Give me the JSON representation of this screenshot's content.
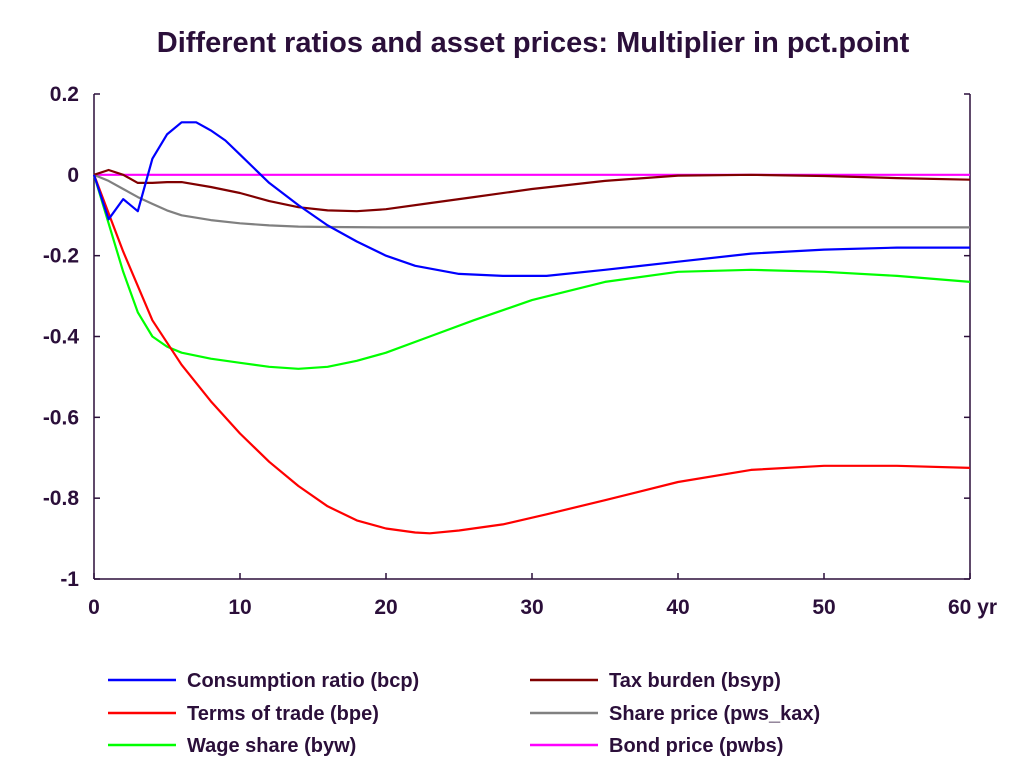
{
  "chart_data": {
    "type": "line",
    "title": "Different ratios and asset prices: Multiplier in pct.point",
    "xlabel": "",
    "ylabel": "",
    "xlim": [
      0,
      60
    ],
    "ylim": [
      -1,
      0.2
    ],
    "x_ticks": [
      0,
      10,
      20,
      30,
      40,
      50,
      60
    ],
    "x_tick_labels": [
      "0",
      "10",
      "20",
      "30",
      "40",
      "50",
      "60 yr"
    ],
    "y_ticks": [
      0.2,
      0,
      -0.2,
      -0.4,
      -0.6,
      -0.8,
      -1
    ],
    "y_tick_labels": [
      "0.2",
      "0",
      "-0.2",
      "-0.4",
      "-0.6",
      "-0.8",
      "-1"
    ],
    "grid": false,
    "legend_position": "bottom",
    "series": [
      {
        "name": "Consumption ratio (bcp)",
        "color": "#0000ff",
        "x": [
          0,
          1,
          2,
          3,
          4,
          5,
          6,
          7,
          8,
          9,
          10,
          12,
          14,
          16,
          18,
          20,
          22,
          25,
          28,
          31,
          35,
          40,
          45,
          50,
          55,
          60
        ],
        "y": [
          0,
          -0.11,
          -0.06,
          -0.09,
          0.04,
          0.1,
          0.13,
          0.13,
          0.11,
          0.085,
          0.05,
          -0.02,
          -0.075,
          -0.125,
          -0.165,
          -0.2,
          -0.225,
          -0.245,
          -0.25,
          -0.25,
          -0.235,
          -0.215,
          -0.195,
          -0.185,
          -0.18,
          -0.18
        ]
      },
      {
        "name": "Terms of trade (bpe)",
        "color": "#ff0000",
        "x": [
          0,
          2,
          4,
          6,
          8,
          10,
          12,
          14,
          16,
          18,
          20,
          22,
          23,
          25,
          28,
          31,
          35,
          40,
          45,
          50,
          55,
          60
        ],
        "y": [
          0,
          -0.19,
          -0.36,
          -0.47,
          -0.56,
          -0.64,
          -0.71,
          -0.77,
          -0.82,
          -0.855,
          -0.875,
          -0.885,
          -0.887,
          -0.88,
          -0.865,
          -0.84,
          -0.805,
          -0.76,
          -0.73,
          -0.72,
          -0.72,
          -0.725
        ]
      },
      {
        "name": "Wage share (byw)",
        "color": "#00ff00",
        "x": [
          0,
          1,
          2,
          3,
          4,
          5,
          6,
          8,
          10,
          12,
          14,
          16,
          18,
          20,
          23,
          26,
          30,
          35,
          40,
          45,
          50,
          55,
          60
        ],
        "y": [
          0,
          -0.12,
          -0.24,
          -0.34,
          -0.4,
          -0.425,
          -0.44,
          -0.455,
          -0.465,
          -0.475,
          -0.48,
          -0.475,
          -0.46,
          -0.44,
          -0.4,
          -0.36,
          -0.31,
          -0.265,
          -0.24,
          -0.235,
          -0.24,
          -0.25,
          -0.265
        ]
      },
      {
        "name": "Tax burden (bsyp)",
        "color": "#800000",
        "x": [
          0,
          1,
          2,
          3,
          4,
          5,
          6,
          8,
          10,
          12,
          14,
          16,
          18,
          20,
          23,
          26,
          30,
          35,
          40,
          45,
          50,
          55,
          60
        ],
        "y": [
          0,
          0.012,
          0,
          -0.02,
          -0.02,
          -0.018,
          -0.018,
          -0.03,
          -0.045,
          -0.065,
          -0.08,
          -0.088,
          -0.09,
          -0.085,
          -0.07,
          -0.055,
          -0.035,
          -0.015,
          -0.002,
          0,
          -0.003,
          -0.008,
          -0.012
        ]
      },
      {
        "name": "Share price (pws_kax)",
        "color": "#808080",
        "x": [
          0,
          1,
          2,
          3,
          4,
          5,
          6,
          8,
          10,
          12,
          14,
          16,
          20,
          30,
          40,
          50,
          60
        ],
        "y": [
          0,
          -0.015,
          -0.035,
          -0.055,
          -0.072,
          -0.088,
          -0.1,
          -0.112,
          -0.12,
          -0.125,
          -0.128,
          -0.129,
          -0.13,
          -0.13,
          -0.13,
          -0.13,
          -0.13
        ]
      },
      {
        "name": "Bond price (pwbs)",
        "color": "#ff00ff",
        "x": [
          0,
          60
        ],
        "y": [
          0,
          0
        ]
      }
    ]
  }
}
